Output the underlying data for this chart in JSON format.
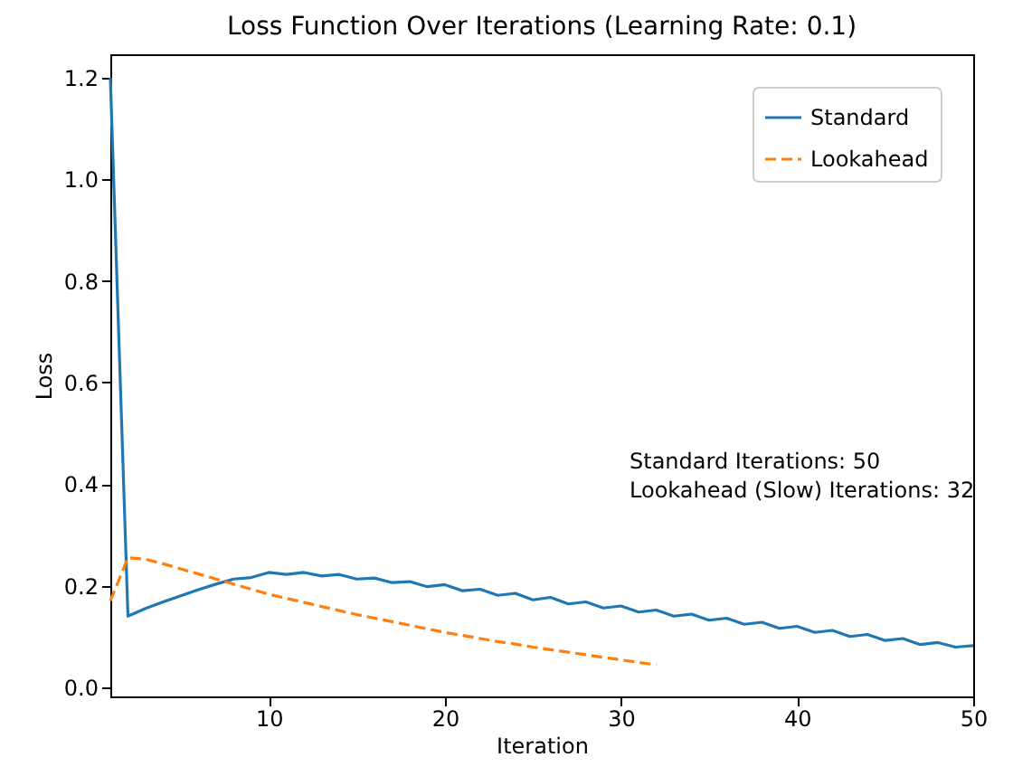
{
  "chart_data": {
    "type": "line",
    "title": "Loss Function Over Iterations (Learning Rate: 0.1)",
    "xlabel": "Iteration",
    "ylabel": "Loss",
    "x": [
      1,
      2,
      3,
      4,
      5,
      6,
      7,
      8,
      9,
      10,
      11,
      12,
      13,
      14,
      15,
      16,
      17,
      18,
      19,
      20,
      21,
      22,
      23,
      24,
      25,
      26,
      27,
      28,
      29,
      30,
      31,
      32,
      33,
      34,
      35,
      36,
      37,
      38,
      39,
      40,
      41,
      42,
      43,
      44,
      45,
      46,
      47,
      48,
      49,
      50
    ],
    "series": [
      {
        "name": "Standard",
        "color": "#1f77b4",
        "line_style": "solid",
        "values": [
          1.2,
          0.14,
          0.155,
          0.168,
          0.18,
          0.192,
          0.203,
          0.213,
          0.216,
          0.226,
          0.222,
          0.226,
          0.219,
          0.222,
          0.213,
          0.215,
          0.206,
          0.208,
          0.198,
          0.202,
          0.19,
          0.193,
          0.181,
          0.185,
          0.172,
          0.177,
          0.164,
          0.168,
          0.156,
          0.16,
          0.148,
          0.152,
          0.14,
          0.144,
          0.132,
          0.136,
          0.124,
          0.128,
          0.116,
          0.12,
          0.108,
          0.112,
          0.1,
          0.104,
          0.092,
          0.096,
          0.084,
          0.088,
          0.079,
          0.082
        ]
      },
      {
        "name": "Lookahead",
        "color": "#ff7f0e",
        "line_style": "dashed",
        "x": [
          1,
          2,
          3,
          4,
          5,
          6,
          7,
          8,
          9,
          10,
          11,
          12,
          13,
          14,
          15,
          16,
          17,
          18,
          19,
          20,
          21,
          22,
          23,
          24,
          25,
          26,
          27,
          28,
          29,
          30,
          31,
          32
        ],
        "values": [
          0.17,
          0.255,
          0.252,
          0.243,
          0.233,
          0.223,
          0.213,
          0.203,
          0.193,
          0.183,
          0.175,
          0.167,
          0.159,
          0.151,
          0.143,
          0.136,
          0.129,
          0.122,
          0.115,
          0.108,
          0.102,
          0.096,
          0.09,
          0.085,
          0.079,
          0.074,
          0.069,
          0.064,
          0.059,
          0.054,
          0.049,
          0.044
        ]
      }
    ],
    "annotations": [
      "Standard Iterations: 50",
      "Lookahead (Slow) Iterations: 32"
    ],
    "xlim": [
      1,
      50
    ],
    "xticks": [
      10,
      20,
      30,
      40,
      50
    ],
    "ylim": [
      -0.018,
      1.246
    ],
    "yticks": [
      {
        "value": 0,
        "label": "0.0"
      },
      {
        "value": 0.2,
        "label": "0.2"
      },
      {
        "value": 0.4,
        "label": "0.4"
      },
      {
        "value": 0.6,
        "label": "0.6"
      },
      {
        "value": 0.8,
        "label": "0.8"
      },
      {
        "value": 1.0,
        "label": "1.0"
      },
      {
        "value": 1.2,
        "label": "1.2"
      }
    ],
    "grid": false,
    "legend": "top right",
    "marker": "none"
  }
}
